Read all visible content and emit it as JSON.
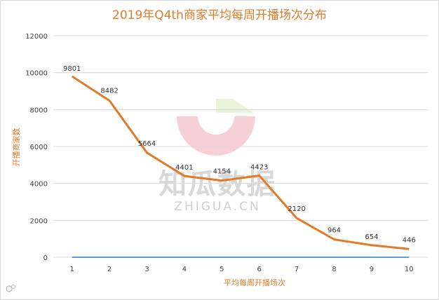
{
  "chart_data": {
    "type": "line",
    "title": "2019年Q4th商家平均每周开播场次分布",
    "xlabel": "平均每周开播场次",
    "ylabel": "开播商家数",
    "categories": [
      "1",
      "2",
      "3",
      "4",
      "5",
      "6",
      "7",
      "8",
      "9",
      "10"
    ],
    "series": [
      {
        "values": [
          9801,
          8482,
          5664,
          4401,
          4154,
          4423,
          2120,
          964,
          654,
          446
        ],
        "color": "#E07B2A"
      },
      {
        "values": [
          0,
          0,
          0,
          0,
          0,
          0,
          0,
          0,
          0,
          0
        ],
        "color": "#5B9BD5"
      }
    ],
    "ylim": [
      0,
      12000
    ],
    "yticks": [
      0,
      2000,
      4000,
      6000,
      8000,
      10000,
      12000
    ],
    "grid": true,
    "data_labels": [
      "9801",
      "8482",
      "5664",
      "4401",
      "4154",
      "4423",
      "2120",
      "964",
      "654",
      "446"
    ]
  },
  "watermark": {
    "brand": "知瓜数据",
    "url": "ZHIGUA.CN"
  },
  "colors": {
    "accent": "#E07B2A",
    "baseline_series": "#5B9BD5",
    "grid": "#D9D9D9"
  }
}
